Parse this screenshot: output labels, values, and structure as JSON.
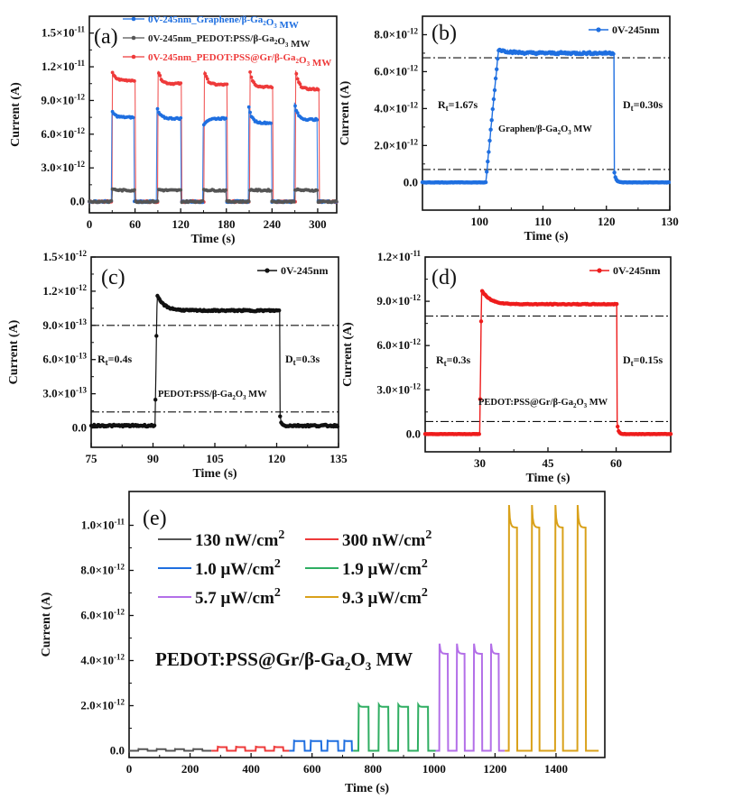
{
  "chart_data": [
    {
      "id": "a",
      "type": "line",
      "panel_label": "(a)",
      "xlabel": "Time (s)",
      "ylabel": "Current (A)",
      "xlim": [
        0,
        325
      ],
      "ylim": [
        -1e-12,
        1.65e-11
      ],
      "xticks": [
        0,
        60,
        120,
        180,
        240,
        300
      ],
      "xtick_labels": [
        "0",
        "60",
        "120",
        "180",
        "240",
        "300"
      ],
      "yticks": [
        0,
        3e-12,
        6e-12,
        9e-12,
        1.2e-11,
        1.5e-11
      ],
      "ytick_labels": [
        [
          "0.0",
          ""
        ],
        [
          "3.0×10",
          "-12"
        ],
        [
          "6.0×10",
          "-12"
        ],
        [
          "9.0×10",
          "-12"
        ],
        [
          "1.2×10",
          "-11"
        ],
        [
          "1.5×10",
          "-11"
        ]
      ],
      "legend_position": "top",
      "series": [
        {
          "name": "0V-245nm_Graphene/β-Ga₂O₃ MW",
          "color": "#1f6fe0",
          "on_periods": [
            [
              29,
              59
            ],
            [
              88,
              120
            ],
            [
              149,
              180
            ],
            [
              209,
              240
            ],
            [
              269,
              300
            ]
          ],
          "peak_values": [
            8.2e-12,
            8.6e-12,
            6.5e-12,
            8.6e-12,
            9e-12
          ],
          "plateau_values": [
            7.5e-12,
            7.4e-12,
            7.4e-12,
            7e-12,
            7.3e-12
          ],
          "dark_value": 0.0
        },
        {
          "name": "0V-245nm_PEDOT:PSS/β-Ga₂O₃ MW",
          "color": "#555555",
          "on_periods": [
            [
              30,
              60
            ],
            [
              90,
              120
            ],
            [
              150,
              180
            ],
            [
              210,
              240
            ],
            [
              270,
              300
            ]
          ],
          "peak_values": [
            1.15e-12,
            1.1e-12,
            1.1e-12,
            1.1e-12,
            1.1e-12
          ],
          "plateau_values": [
            1e-12,
            1e-12,
            1e-12,
            1e-12,
            1e-12
          ],
          "dark_value": 0.0
        },
        {
          "name": "0V-245nm_PEDOT:PSS@Gr/β-Ga₂O₃ MW",
          "color": "#ee3a3a",
          "on_periods": [
            [
              30,
              60
            ],
            [
              90,
              121
            ],
            [
              151,
              181
            ],
            [
              211,
              241
            ],
            [
              271,
              302
            ]
          ],
          "peak_values": [
            1.15e-11,
            1.18e-11,
            1.17e-11,
            1.16e-11,
            1.17e-11
          ],
          "plateau_values": [
            1.08e-11,
            1.05e-11,
            1.04e-11,
            1.02e-11,
            1e-11
          ],
          "dark_value": 0.0
        }
      ]
    },
    {
      "id": "b",
      "type": "line",
      "panel_label": "(b)",
      "xlabel": "Time (s)",
      "ylabel": "Current (A)",
      "xlim": [
        91,
        130
      ],
      "ylim": [
        -1.5e-12,
        9e-12
      ],
      "xticks": [
        100,
        110,
        120,
        130
      ],
      "xtick_labels": [
        "100",
        "110",
        "120",
        "130"
      ],
      "yticks": [
        0,
        2e-12,
        4e-12,
        6e-12,
        8e-12
      ],
      "ytick_labels": [
        [
          "0.0",
          ""
        ],
        [
          "2.0×10",
          "-12"
        ],
        [
          "4.0×10",
          "-12"
        ],
        [
          "6.0×10",
          "-12"
        ],
        [
          "8.0×10",
          "-12"
        ]
      ],
      "legend": "0V-245nm",
      "legend_position": "top-right",
      "series": [
        {
          "name": "0V-245nm",
          "color": "#1f6fe0",
          "on": 101.0,
          "off": 121.2,
          "rise_end": 103.0,
          "peak": 7.6e-12,
          "plateau": 7e-12,
          "dark": 0.0
        }
      ],
      "hlines": [
        6.75e-12,
        7e-13
      ],
      "annotations": {
        "rise": "R",
        "rise_sub": "t",
        "rise_val": "=1.67s",
        "decay": "D",
        "decay_sub": "t",
        "decay_val": "=0.30s",
        "device_pre": "Graphen/β-Ga",
        "device_sub1": "2",
        "device_mid": "O",
        "device_sub2": "3",
        "device_post": " MW"
      }
    },
    {
      "id": "c",
      "type": "line",
      "panel_label": "(c)",
      "xlabel": "Time (s)",
      "ylabel": "Current (A)",
      "xlim": [
        75,
        135
      ],
      "ylim": [
        -1.7e-13,
        1.5e-12
      ],
      "xticks": [
        75,
        90,
        105,
        120,
        135
      ],
      "xtick_labels": [
        "75",
        "90",
        "105",
        "120",
        "135"
      ],
      "yticks": [
        0,
        3e-13,
        6e-13,
        9e-13,
        1.2e-12,
        1.5e-12
      ],
      "ytick_labels": [
        [
          "0.0",
          ""
        ],
        [
          "3.0×10",
          "-13"
        ],
        [
          "6.0×10",
          "-13"
        ],
        [
          "9.0×10",
          "-13"
        ],
        [
          "1.2×10",
          "-12"
        ],
        [
          "1.5×10",
          "-12"
        ]
      ],
      "legend": "0V-245nm",
      "legend_position": "top-right",
      "series": [
        {
          "name": "0V-245nm",
          "color": "#111111",
          "on": 90.5,
          "off": 120.8,
          "peak": 1.2e-12,
          "plateau": 1.03e-12,
          "dark": 2e-14
        }
      ],
      "hlines": [
        9e-13,
        1.4e-13
      ],
      "annotations": {
        "rise": "R",
        "rise_sub": "t",
        "rise_val": "=0.4s",
        "decay": "D",
        "decay_sub": "t",
        "decay_val": "=0.3s",
        "device_pre": "PEDOT:PSS/β-Ga",
        "device_sub1": "2",
        "device_mid": "O",
        "device_sub2": "3",
        "device_post": " MW"
      }
    },
    {
      "id": "d",
      "type": "line",
      "panel_label": "(d)",
      "xlabel": "Time (s)",
      "ylabel": "Current (A)",
      "xlim": [
        18,
        72
      ],
      "ylim": [
        -1.2e-12,
        1.2e-11
      ],
      "xticks": [
        30,
        45,
        60
      ],
      "xtick_labels": [
        "30",
        "45",
        "60"
      ],
      "yticks": [
        0,
        3e-12,
        6e-12,
        9e-12,
        1.2e-11
      ],
      "ytick_labels": [
        [
          "0.0",
          ""
        ],
        [
          "3.0×10",
          "-12"
        ],
        [
          "6.0×10",
          "-12"
        ],
        [
          "9.0×10",
          "-12"
        ],
        [
          "1.2×10",
          "-11"
        ]
      ],
      "legend": "0V-245nm",
      "legend_position": "top-right",
      "series": [
        {
          "name": "0V-245nm",
          "color": "#ee1c1c",
          "on": 30.0,
          "off": 60.2,
          "peak": 1e-11,
          "plateau": 8.8e-12,
          "dark": 0.0
        }
      ],
      "hlines": [
        8e-12,
        8.5e-13
      ],
      "annotations": {
        "rise": "R",
        "rise_sub": "t",
        "rise_val": "=0.3s",
        "decay": "D",
        "decay_sub": "t",
        "decay_val": "=0.15s",
        "device_pre": "PEDOT:PSS@Gr/β-Ga",
        "device_sub1": "2",
        "device_mid": "O",
        "device_sub2": "3",
        "device_post": " MW"
      }
    },
    {
      "id": "e",
      "type": "line",
      "panel_label": "(e)",
      "xlabel": "Time (s)",
      "ylabel": "Current (A)",
      "xlim": [
        0,
        1560
      ],
      "ylim": [
        -3e-13,
        1.15e-11
      ],
      "xticks": [
        0,
        200,
        400,
        600,
        800,
        1000,
        1200,
        1400
      ],
      "xtick_labels": [
        "0",
        "200",
        "400",
        "600",
        "800",
        "1000",
        "1200",
        "1400"
      ],
      "yticks": [
        0,
        2e-12,
        4e-12,
        6e-12,
        8e-12,
        1e-11
      ],
      "ytick_labels": [
        [
          "0.0",
          ""
        ],
        [
          "2.0×10",
          "-12"
        ],
        [
          "4.0×10",
          "-12"
        ],
        [
          "6.0×10",
          "-12"
        ],
        [
          "8.0×10",
          "-12"
        ],
        [
          "1.0×10",
          "-11"
        ]
      ],
      "legend_position": "top-left",
      "annotation": {
        "pre": "PEDOT:PSS@Gr/β-Ga",
        "sub1": "2",
        "mid": "O",
        "sub2": "3",
        "post": " MW"
      },
      "series": [
        {
          "name": "130 nW/cm",
          "sup": "2",
          "color": "#555555",
          "start": 0,
          "end": 270,
          "on_periods": [
            [
              30,
              60
            ],
            [
              90,
              120
            ],
            [
              150,
              180
            ],
            [
              210,
              240
            ]
          ],
          "peak": 8e-14,
          "plateau": 7e-14
        },
        {
          "name": "300 nW/cm",
          "sup": "2",
          "color": "#ee3a3a",
          "start": 270,
          "end": 525,
          "on_periods": [
            [
              290,
              320
            ],
            [
              350,
              380
            ],
            [
              415,
              445
            ],
            [
              475,
              505
            ]
          ],
          "peak": 1.8e-13,
          "plateau": 1.6e-13
        },
        {
          "name": "1.0 μW/cm",
          "sup": "2",
          "color": "#1f6fe0",
          "start": 525,
          "end": 735,
          "on_periods": [
            [
              540,
              575
            ],
            [
              595,
              630
            ],
            [
              650,
              685
            ],
            [
              705,
              730
            ]
          ],
          "peak": 4.5e-13,
          "plateau": 4.3e-13
        },
        {
          "name": "1.9 μW/cm",
          "sup": "2",
          "color": "#2fae62",
          "start": 735,
          "end": 1005,
          "on_periods": [
            [
              752,
              785
            ],
            [
              818,
              850
            ],
            [
              882,
              915
            ],
            [
              947,
              980
            ]
          ],
          "peak": 2.05e-12,
          "plateau": 1.95e-12
        },
        {
          "name": "5.7 μW/cm",
          "sup": "2",
          "color": "#b36fe8",
          "start": 1005,
          "end": 1232,
          "on_periods": [
            [
              1017,
              1045
            ],
            [
              1074,
              1100
            ],
            [
              1130,
              1157
            ],
            [
              1186,
              1212
            ]
          ],
          "peak": 4.75e-12,
          "plateau": 4.3e-12
        },
        {
          "name": "9.3 μW/cm",
          "sup": "2",
          "color": "#d9a11a",
          "start": 1232,
          "end": 1540,
          "on_periods": [
            [
              1245,
              1272
            ],
            [
              1320,
              1345
            ],
            [
              1397,
              1422
            ],
            [
              1470,
              1497
            ]
          ],
          "peak": 1.09e-11,
          "plateau": 9.9e-12
        }
      ]
    }
  ]
}
